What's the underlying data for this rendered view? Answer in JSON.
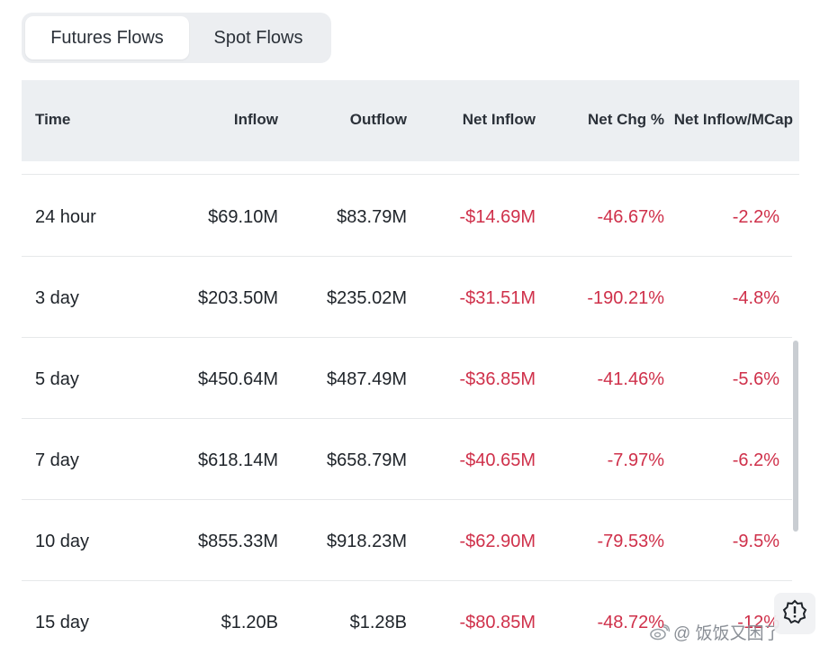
{
  "tabs": [
    {
      "label": "Futures Flows",
      "active": true
    },
    {
      "label": "Spot Flows",
      "active": false
    }
  ],
  "table": {
    "columns": [
      "Time",
      "Inflow",
      "Outflow",
      "Net Inflow",
      "Net Chg %",
      "Net Inflow/MCap"
    ],
    "rows": [
      {
        "time": "24 hour",
        "inflow": "$69.10M",
        "outflow": "$83.79M",
        "net_inflow": "-$14.69M",
        "net_chg": "-46.67%",
        "net_mcap": "-2.2%"
      },
      {
        "time": "3 day",
        "inflow": "$203.50M",
        "outflow": "$235.02M",
        "net_inflow": "-$31.51M",
        "net_chg": "-190.21%",
        "net_mcap": "-4.8%"
      },
      {
        "time": "5 day",
        "inflow": "$450.64M",
        "outflow": "$487.49M",
        "net_inflow": "-$36.85M",
        "net_chg": "-41.46%",
        "net_mcap": "-5.6%"
      },
      {
        "time": "7 day",
        "inflow": "$618.14M",
        "outflow": "$658.79M",
        "net_inflow": "-$40.65M",
        "net_chg": "-7.97%",
        "net_mcap": "-6.2%"
      },
      {
        "time": "10 day",
        "inflow": "$855.33M",
        "outflow": "$918.23M",
        "net_inflow": "-$62.90M",
        "net_chg": "-79.53%",
        "net_mcap": "-9.5%"
      },
      {
        "time": "15 day",
        "inflow": "$1.20B",
        "outflow": "$1.28B",
        "net_inflow": "-$80.85M",
        "net_chg": "-48.72%",
        "net_mcap": "-12%"
      }
    ]
  },
  "watermark": {
    "text": "@ 饭饭又困了",
    "icon": "weibo-logo-icon"
  },
  "floating_button": {
    "icon": "feedback-alert-icon"
  },
  "colors": {
    "negative": "#cf304a",
    "header_bg": "#eceff2",
    "tab_bg": "#eceef1",
    "text": "#1e2329"
  }
}
